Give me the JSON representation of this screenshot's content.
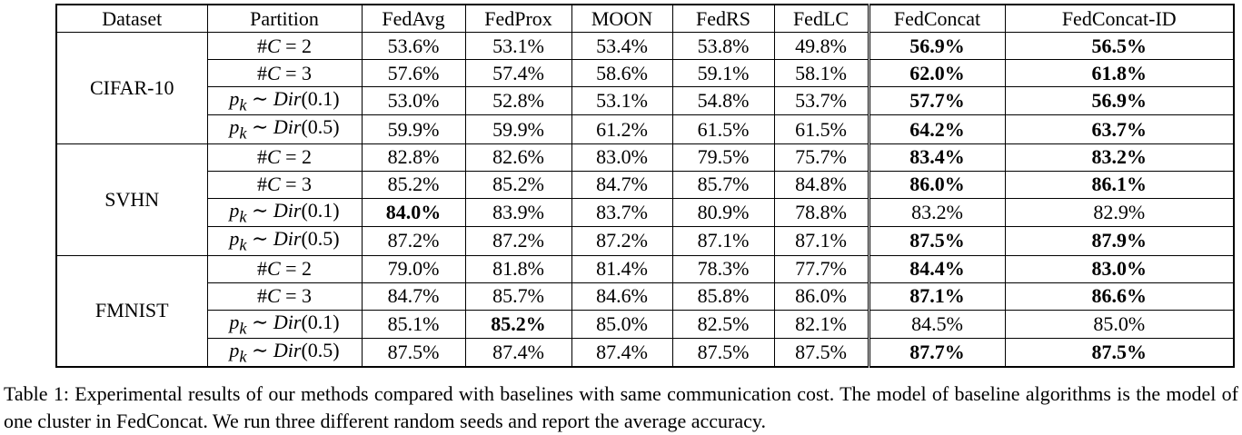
{
  "caption": {
    "text": "Table 1: Experimental results of our methods compared with baselines with same communication cost. The model of baseline algorithms is the model of one cluster in FedConcat. We run three different random seeds and report the average accuracy."
  },
  "table": {
    "columns": [
      "Dataset",
      "Partition",
      "FedAvg",
      "FedProx",
      "MOON",
      "FedRS",
      "FedLC",
      "FedConcat",
      "FedConcat-ID"
    ],
    "groups": [
      {
        "dataset": "CIFAR-10",
        "rows": [
          {
            "partition": "#C = 2",
            "values": [
              "53.6%",
              "53.1%",
              "53.4%",
              "53.8%",
              "49.8%",
              "56.9%",
              "56.5%"
            ],
            "bold": [
              5,
              6
            ]
          },
          {
            "partition": "#C = 3",
            "values": [
              "57.6%",
              "57.4%",
              "58.6%",
              "59.1%",
              "58.1%",
              "62.0%",
              "61.8%"
            ],
            "bold": [
              5,
              6
            ]
          },
          {
            "partition": "p_k ~ Dir(0.1)",
            "values": [
              "53.0%",
              "52.8%",
              "53.1%",
              "54.8%",
              "53.7%",
              "57.7%",
              "56.9%"
            ],
            "bold": [
              5,
              6
            ]
          },
          {
            "partition": "p_k ~ Dir(0.5)",
            "values": [
              "59.9%",
              "59.9%",
              "61.2%",
              "61.5%",
              "61.5%",
              "64.2%",
              "63.7%"
            ],
            "bold": [
              5,
              6
            ]
          }
        ]
      },
      {
        "dataset": "SVHN",
        "rows": [
          {
            "partition": "#C = 2",
            "values": [
              "82.8%",
              "82.6%",
              "83.0%",
              "79.5%",
              "75.7%",
              "83.4%",
              "83.2%"
            ],
            "bold": [
              5,
              6
            ]
          },
          {
            "partition": "#C = 3",
            "values": [
              "85.2%",
              "85.2%",
              "84.7%",
              "85.7%",
              "84.8%",
              "86.0%",
              "86.1%"
            ],
            "bold": [
              5,
              6
            ]
          },
          {
            "partition": "p_k ~ Dir(0.1)",
            "values": [
              "84.0%",
              "83.9%",
              "83.7%",
              "80.9%",
              "78.8%",
              "83.2%",
              "82.9%"
            ],
            "bold": [
              0
            ]
          },
          {
            "partition": "p_k ~ Dir(0.5)",
            "values": [
              "87.2%",
              "87.2%",
              "87.2%",
              "87.1%",
              "87.1%",
              "87.5%",
              "87.9%"
            ],
            "bold": [
              5,
              6
            ]
          }
        ]
      },
      {
        "dataset": "FMNIST",
        "rows": [
          {
            "partition": "#C = 2",
            "values": [
              "79.0%",
              "81.8%",
              "81.4%",
              "78.3%",
              "77.7%",
              "84.4%",
              "83.0%"
            ],
            "bold": [
              5,
              6
            ]
          },
          {
            "partition": "#C = 3",
            "values": [
              "84.7%",
              "85.7%",
              "84.6%",
              "85.8%",
              "86.0%",
              "87.1%",
              "86.6%"
            ],
            "bold": [
              5,
              6
            ]
          },
          {
            "partition": "p_k ~ Dir(0.1)",
            "values": [
              "85.1%",
              "85.2%",
              "85.0%",
              "82.5%",
              "82.1%",
              "84.5%",
              "85.0%"
            ],
            "bold": [
              1
            ]
          },
          {
            "partition": "p_k ~ Dir(0.5)",
            "values": [
              "87.5%",
              "87.4%",
              "87.4%",
              "87.5%",
              "87.5%",
              "87.7%",
              "87.5%"
            ],
            "bold": [
              5,
              6
            ]
          }
        ]
      }
    ]
  }
}
